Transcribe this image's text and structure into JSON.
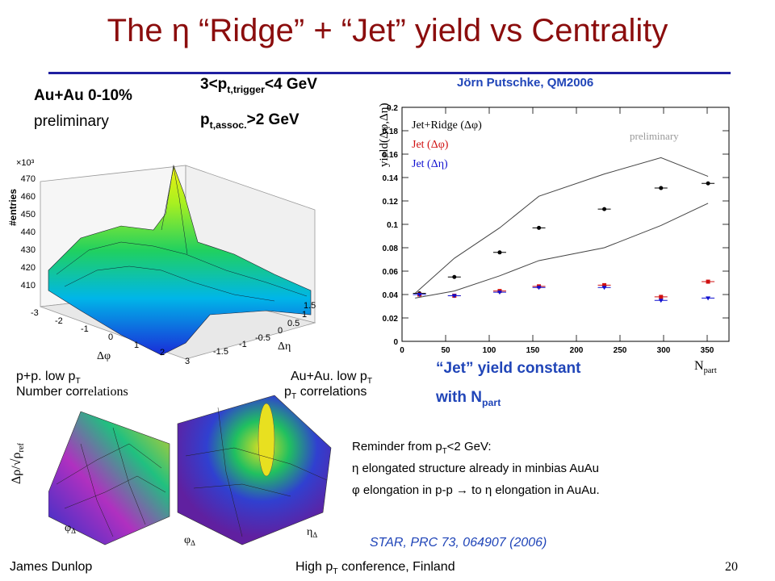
{
  "slide": {
    "title": "The η “Ridge” + “Jet” yield vs Centrality",
    "author_credit": "Jörn Putschke, QM2006",
    "system_label": "Au+Au 0-10%",
    "status_label": "preliminary",
    "trigger_text": "3<p",
    "trigger_sub": "t,trigger",
    "trigger_end": "<4 GeV",
    "assoc_text": "p",
    "assoc_sub": "t,assoc.",
    "assoc_end": ">2 GeV",
    "pp_line1": "p+p. low p",
    "pp_line1_sub": "T",
    "pp_line2_a": "Number corr",
    "pp_line2_b": "elations",
    "auau_line1": "Au+Au. low p",
    "auau_line1_sub": "T",
    "auau_line2": "p",
    "auau_line2_sub": "T",
    "auau_line2_end": "  correlations",
    "jet_note_1": "“Jet” yield constant",
    "jet_note_2": "with N",
    "jet_note_2_sub": "part",
    "reminder_1": "Reminder from p",
    "reminder_1_sub": "T",
    "reminder_1_end": "<2 GeV:",
    "reminder_2": "η elongated structure already in minbias AuAu",
    "reminder_3": "φ elongation in p-p → to η elongation in AuAu.",
    "reference": "STAR, PRC 73, 064907 (2006)",
    "footer_left": "James Dunlop",
    "footer_mid": "High p",
    "footer_mid_sub": "T",
    "footer_mid_end": " conference, Finland",
    "page_number": "20"
  },
  "surface_plot": {
    "z_label": "#entries",
    "z_multiplier": "×10³",
    "z_ticks": [
      "410",
      "420",
      "430",
      "440",
      "450",
      "460",
      "470"
    ],
    "x_label": "Δφ",
    "x_ticks": [
      "-3",
      "-2",
      "-1",
      "0",
      "1",
      "2",
      "3"
    ],
    "y_label": "Δη",
    "y_ticks": [
      "-1.5",
      "-1",
      "-0.5",
      "0",
      "0.5",
      "1",
      "1.5"
    ]
  },
  "small_plots": {
    "z_label": "Δρ/√ρ",
    "z_label_sub": "ref",
    "x_label": "φ",
    "x_label_sub": "Δ",
    "y_label": "η",
    "y_label_sub": "Δ"
  },
  "colors": {
    "title": "#8b0d0d",
    "rule": "#1f1fa0",
    "note_blue": "#2045b8",
    "series_black": "#000000",
    "series_red": "#d01010",
    "series_blue": "#1010d0"
  },
  "chart_data": {
    "type": "scatter",
    "title": "",
    "xlabel": "N",
    "xlabel_sub": "part",
    "ylabel": "yield(Δφ,Δη)",
    "annotation": "preliminary",
    "xlim": [
      0,
      375
    ],
    "ylim": [
      0,
      0.2
    ],
    "xticks": [
      0,
      50,
      100,
      150,
      200,
      250,
      300,
      350
    ],
    "yticks": [
      0,
      0.02,
      0.04,
      0.06,
      0.08,
      0.1,
      0.12,
      0.14,
      0.16,
      0.18,
      0.2
    ],
    "ytick_labels": [
      "0",
      "0.02",
      "0.04",
      "0.06",
      "0.08",
      "0.1",
      "0.12",
      "0.14",
      "0.16",
      "0.18",
      "0.2"
    ],
    "grid": false,
    "legend_position": "top-left",
    "series": [
      {
        "name": "Jet+Ridge (Δφ)",
        "color": "#000000",
        "marker": "circle",
        "x": [
          20,
          60,
          112,
          157,
          232,
          297,
          351
        ],
        "y": [
          0.041,
          0.055,
          0.076,
          0.097,
          0.113,
          0.131,
          0.135
        ]
      },
      {
        "name": "Jet (Δφ)",
        "color": "#d01010",
        "marker": "square",
        "x": [
          20,
          60,
          112,
          157,
          232,
          297,
          351
        ],
        "y": [
          0.04,
          0.039,
          0.043,
          0.047,
          0.048,
          0.038,
          0.051
        ]
      },
      {
        "name": "Jet (Δη)",
        "color": "#1010d0",
        "marker": "triangle-down",
        "x": [
          20,
          60,
          112,
          157,
          232,
          297,
          351
        ],
        "y": [
          0.04,
          0.039,
          0.042,
          0.046,
          0.046,
          0.035,
          0.037
        ]
      }
    ],
    "band": {
      "upper_x": [
        15,
        60,
        112,
        157,
        232,
        297,
        351
      ],
      "upper_y": [
        0.041,
        0.071,
        0.097,
        0.124,
        0.143,
        0.157,
        0.141
      ],
      "lower_x": [
        15,
        60,
        112,
        157,
        232,
        297,
        351
      ],
      "lower_y": [
        0.037,
        0.043,
        0.056,
        0.069,
        0.08,
        0.099,
        0.118
      ]
    }
  }
}
